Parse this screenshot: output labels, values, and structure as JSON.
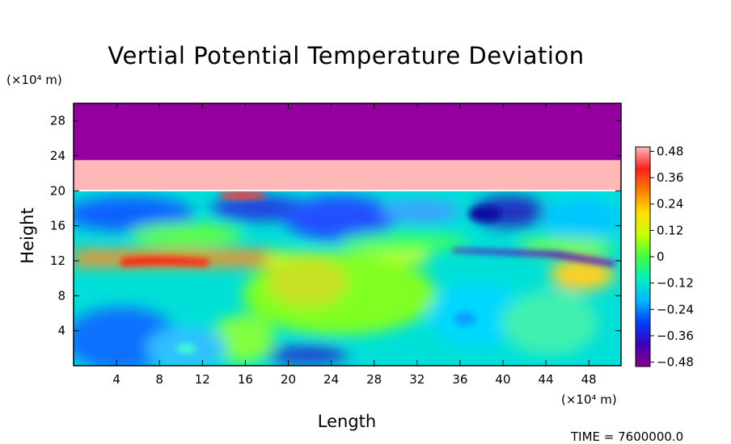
{
  "chart_data": {
    "type": "heatmap",
    "title": "Vertial Potential Temperature Deviation",
    "xlabel": "Length",
    "ylabel": "Height",
    "x_unit": "(×10⁴ m)",
    "y_unit": "(×10⁴ m)",
    "xlim": [
      0,
      51
    ],
    "ylim": [
      0,
      30
    ],
    "x_ticks": [
      4,
      8,
      12,
      16,
      20,
      24,
      28,
      32,
      36,
      40,
      44,
      48
    ],
    "y_ticks": [
      4,
      8,
      12,
      16,
      20,
      24,
      28
    ],
    "colorbar": {
      "range": [
        -0.5,
        0.5
      ],
      "tick_values": [
        0.48,
        0.36,
        0.24,
        0.12,
        0,
        -0.12,
        -0.24,
        -0.36,
        -0.48
      ],
      "tick_labels": [
        "0.48",
        "0.36",
        "0.24",
        "0.12",
        "0",
        "−0.12",
        "−0.24",
        "−0.36",
        "−0.48"
      ],
      "colors": [
        "#8b008b",
        "#3a00b8",
        "#0040ff",
        "#00b8ff",
        "#00f0c0",
        "#40ff40",
        "#c8ff00",
        "#ffe000",
        "#ff8000",
        "#ff2020",
        "#ffb6b6"
      ]
    },
    "layers": [
      {
        "y_from": 23.5,
        "y_to": 30,
        "value": -0.5,
        "color": "#9400a0"
      },
      {
        "y_from": 20.1,
        "y_to": 23.5,
        "value": 0.5,
        "color": "#ffb8b8"
      }
    ],
    "time_label": "TIME = 7600000.0"
  }
}
